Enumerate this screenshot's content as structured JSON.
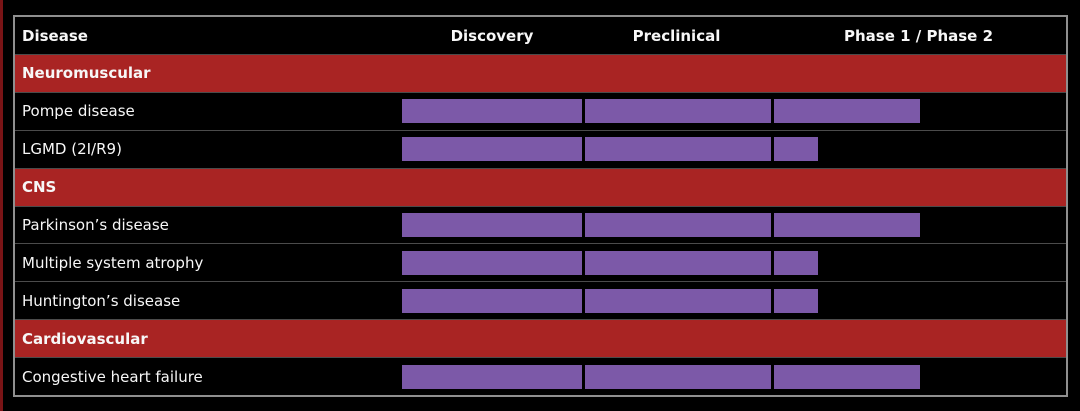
{
  "colors": {
    "background": "#000000",
    "table_border": "#8f8f8f",
    "row_divider": "#4b4b4b",
    "section_bg": "#a92423",
    "bar_fill": "#7c59a8",
    "text": "#f7f7f7",
    "left_edge_stripe": "#7a1416"
  },
  "chart_data": {
    "type": "table",
    "description": "Drug development pipeline progress table; purple bars show progress across phases",
    "columns": [
      "Disease",
      "Discovery",
      "Preclinical",
      "Phase 1 / Phase 2"
    ],
    "phase_keys": [
      "discovery",
      "preclinical",
      "phase_1_2"
    ],
    "sections": [
      {
        "label": "Neuromuscular",
        "rows": [
          {
            "disease": "Pompe disease",
            "progress_pct": {
              "discovery": 100,
              "preclinical": 100,
              "phase_1_2": 50
            }
          },
          {
            "disease": "LGMD (2I/R9)",
            "progress_pct": {
              "discovery": 100,
              "preclinical": 100,
              "phase_1_2": 15
            }
          }
        ]
      },
      {
        "label": "CNS",
        "rows": [
          {
            "disease": "Parkinson’s disease",
            "progress_pct": {
              "discovery": 100,
              "preclinical": 100,
              "phase_1_2": 50
            }
          },
          {
            "disease": "Multiple system atrophy",
            "progress_pct": {
              "discovery": 100,
              "preclinical": 100,
              "phase_1_2": 15
            }
          },
          {
            "disease": "Huntington’s disease",
            "progress_pct": {
              "discovery": 100,
              "preclinical": 100,
              "phase_1_2": 15
            }
          }
        ]
      },
      {
        "label": "Cardiovascular",
        "rows": [
          {
            "disease": "Congestive heart failure",
            "progress_pct": {
              "discovery": 100,
              "preclinical": 100,
              "phase_1_2": 50
            }
          }
        ]
      }
    ]
  }
}
